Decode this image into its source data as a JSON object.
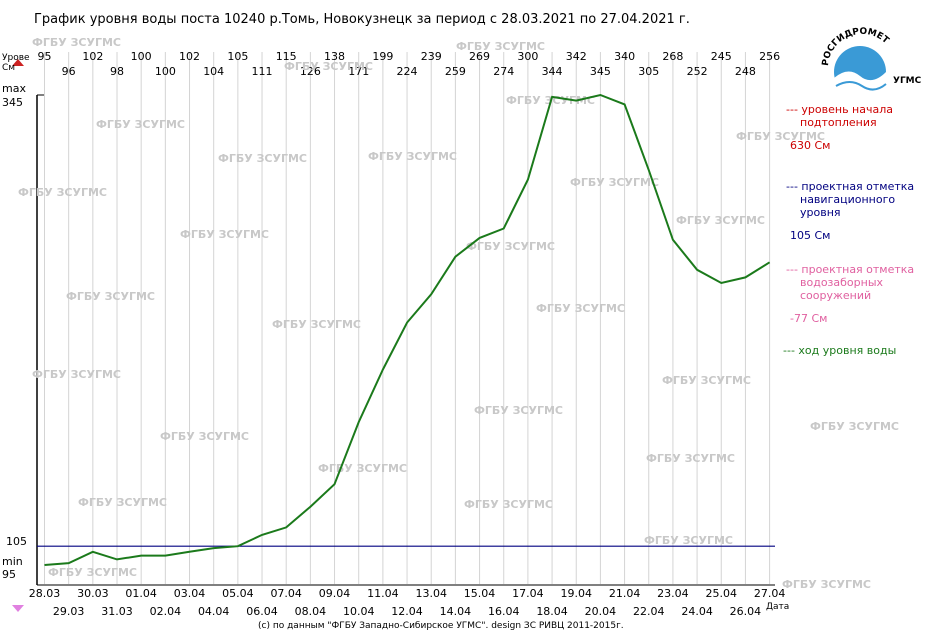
{
  "chart_data": {
    "type": "line",
    "title": "График уровня воды поста 10240 р.Томь, Новокузнецк за период с 28.03.2021 по 27.04.2021 г.",
    "ylabel": [
      "Урове",
      "См"
    ],
    "xlabel": "Дата",
    "ylim": [
      95,
      345
    ],
    "y_markers": {
      "max_label": "max",
      "max_value": "345",
      "min_label": "min",
      "min_value": "95",
      "nav_value": "105"
    },
    "dates_row_a": [
      "28.03",
      "30.03",
      "01.04",
      "03.04",
      "05.04",
      "07.04",
      "09.04",
      "11.04",
      "13.04",
      "15.04",
      "17.04",
      "19.04",
      "21.04",
      "23.04",
      "25.04",
      "27.04"
    ],
    "dates_row_b": [
      "29.03",
      "31.03",
      "02.04",
      "04.04",
      "06.04",
      "08.04",
      "10.04",
      "12.04",
      "14.04",
      "16.04",
      "18.04",
      "20.04",
      "22.04",
      "24.04",
      "26.04"
    ],
    "values_row_a": [
      "95",
      "102",
      "100",
      "102",
      "105",
      "115",
      "138",
      "199",
      "239",
      "269",
      "300",
      "342",
      "340",
      "268",
      "245",
      "256"
    ],
    "values_row_b": [
      "96",
      "98",
      "100",
      "104",
      "111",
      "126",
      "171",
      "224",
      "259",
      "274",
      "344",
      "345",
      "305",
      "252",
      "248"
    ],
    "series": [
      {
        "name": "ход уровня воды",
        "color": "#1b7a1b",
        "x": [
          "28.03",
          "29.03",
          "30.03",
          "31.03",
          "01.04",
          "02.04",
          "03.04",
          "04.04",
          "05.04",
          "06.04",
          "07.04",
          "08.04",
          "09.04",
          "10.04",
          "11.04",
          "12.04",
          "13.04",
          "14.04",
          "15.04",
          "16.04",
          "17.04",
          "18.04",
          "19.04",
          "20.04",
          "21.04",
          "22.04",
          "23.04",
          "24.04",
          "25.04",
          "26.04",
          "27.04"
        ],
        "values": [
          95,
          96,
          102,
          98,
          100,
          100,
          102,
          104,
          105,
          111,
          115,
          126,
          138,
          171,
          199,
          224,
          239,
          259,
          269,
          274,
          300,
          344,
          342,
          345,
          340,
          305,
          268,
          252,
          245,
          248,
          256
        ]
      },
      {
        "name": "проектная отметка навигационного уровня",
        "color": "#000080",
        "values": [
          105
        ]
      }
    ],
    "legend": [
      {
        "text": [
          "--- уровень начала",
          "подтопления"
        ],
        "value": "630 См",
        "color": "#cc0000"
      },
      {
        "text": [
          "--- проектная отметка",
          "навигационного",
          "уровня"
        ],
        "value": "105 См",
        "color": "#000080"
      },
      {
        "text": [
          "--- проектная отметка",
          "водозаборных",
          "сооружений"
        ],
        "value": "-77 См",
        "color": "#e060a0"
      },
      {
        "text": [
          "--- ход уровня воды"
        ],
        "value": "",
        "color": "#1b7a1b"
      }
    ],
    "grid": true,
    "legend_placement": "right",
    "watermark_text": "ФГБУ ЗСУГМС",
    "credit": "(c) по данным \"ФГБУ Западно-Сибирское УГМС\". design ЗС РИВЦ 2011-2015г.",
    "logo": {
      "arc_text": "РОСГИДРОМЕТ",
      "sub_text": "УГМС"
    }
  }
}
